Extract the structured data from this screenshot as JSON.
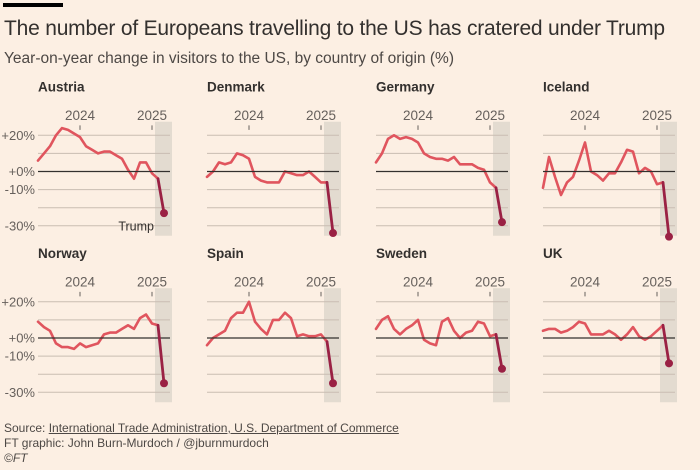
{
  "header": {
    "title": "The number of Europeans travelling to the US has cratered under Trump",
    "subtitle": "Year-on-year change in visitors to the US, by country of origin (%)"
  },
  "footer": {
    "source_prefix": "Source: ",
    "source_link": "International Trade Administration, U.S. Department of Commerce",
    "credit": "FT graphic: John Burn-Murdoch / @jburnmurdoch",
    "copyright": "©FT"
  },
  "colors": {
    "line": "#e0555e",
    "trump_line": "#9a2144",
    "zero_line": "#33302e",
    "grid": "#c9bdb2",
    "shade": "#e3dbd0",
    "text": "#33302e",
    "tick_text": "#66605c"
  },
  "chart_data": {
    "type": "line",
    "title": "The number of Europeans travelling to the US has cratered under Trump",
    "subtitle": "Year-on-year change in visitors to the US, by country of origin (%)",
    "xlabel": "",
    "ylabel": "",
    "x_start": "Jun 2023",
    "x_end": "Mar 2025",
    "x": [
      "2023-06",
      "2023-07",
      "2023-08",
      "2023-09",
      "2023-10",
      "2023-11",
      "2023-12",
      "2024-01",
      "2024-02",
      "2024-03",
      "2024-04",
      "2024-05",
      "2024-06",
      "2024-07",
      "2024-08",
      "2024-09",
      "2024-10",
      "2024-11",
      "2024-12",
      "2025-01",
      "2025-02",
      "2025-03"
    ],
    "xticks": [
      {
        "label": "2024",
        "at": "2024-01"
      },
      {
        "label": "2025",
        "at": "2025-01"
      }
    ],
    "yticks": [
      {
        "value": 20,
        "label": "+20%"
      },
      {
        "value": 0,
        "label": "+0%"
      },
      {
        "value": -10,
        "label": "-10%"
      },
      {
        "value": -30,
        "label": "-30%"
      }
    ],
    "gridlines": [
      20,
      10,
      0,
      -10,
      -20,
      -30
    ],
    "ylim": [
      -35,
      25
    ],
    "grid": true,
    "highlight": {
      "from": "2025-02",
      "to": "2025-03",
      "label": "Trump"
    },
    "panels": [
      {
        "name": "Austria",
        "values": [
          6,
          10,
          14,
          20,
          24,
          23,
          21,
          19,
          14,
          12,
          10,
          11,
          11,
          9,
          7,
          1,
          -4,
          5,
          5,
          -1,
          -4,
          -23
        ]
      },
      {
        "name": "Denmark",
        "values": [
          -3,
          0,
          5,
          4,
          5,
          10,
          9,
          7,
          -3,
          -5,
          -6,
          -6,
          -6,
          0,
          -1,
          -2,
          -2,
          0,
          -3,
          -6,
          -6,
          -34
        ]
      },
      {
        "name": "Germany",
        "values": [
          5,
          10,
          18,
          20,
          18,
          19,
          18,
          16,
          10,
          8,
          7,
          7,
          6,
          8,
          4,
          4,
          4,
          2,
          1,
          -6,
          -9,
          -28
        ]
      },
      {
        "name": "Iceland",
        "values": [
          -9,
          8,
          -3,
          -13,
          -6,
          -3,
          6,
          16,
          0,
          -2,
          -5,
          -1,
          -1,
          5,
          12,
          11,
          -1,
          2,
          0,
          -7,
          -6,
          -36
        ]
      },
      {
        "name": "Norway",
        "values": [
          9,
          6,
          4,
          -3,
          -5,
          -5,
          -6,
          -3,
          -5,
          -4,
          -3,
          2,
          3,
          3,
          5,
          7,
          5,
          11,
          13,
          8,
          7,
          -25
        ]
      },
      {
        "name": "Spain",
        "values": [
          -4,
          0,
          2,
          4,
          11,
          14,
          14,
          20,
          9,
          5,
          2,
          10,
          10,
          14,
          11,
          1,
          2,
          1,
          1,
          2,
          -2,
          -25
        ]
      },
      {
        "name": "Sweden",
        "values": [
          5,
          10,
          12,
          5,
          2,
          5,
          7,
          10,
          -1,
          -3,
          -4,
          9,
          11,
          4,
          0,
          3,
          4,
          9,
          8,
          1,
          2,
          -17
        ]
      },
      {
        "name": "UK",
        "values": [
          4,
          5,
          5,
          3,
          4,
          6,
          9,
          8,
          2,
          2,
          2,
          4,
          2,
          -1,
          2,
          6,
          1,
          -1,
          1,
          4,
          7,
          -14
        ]
      }
    ]
  }
}
